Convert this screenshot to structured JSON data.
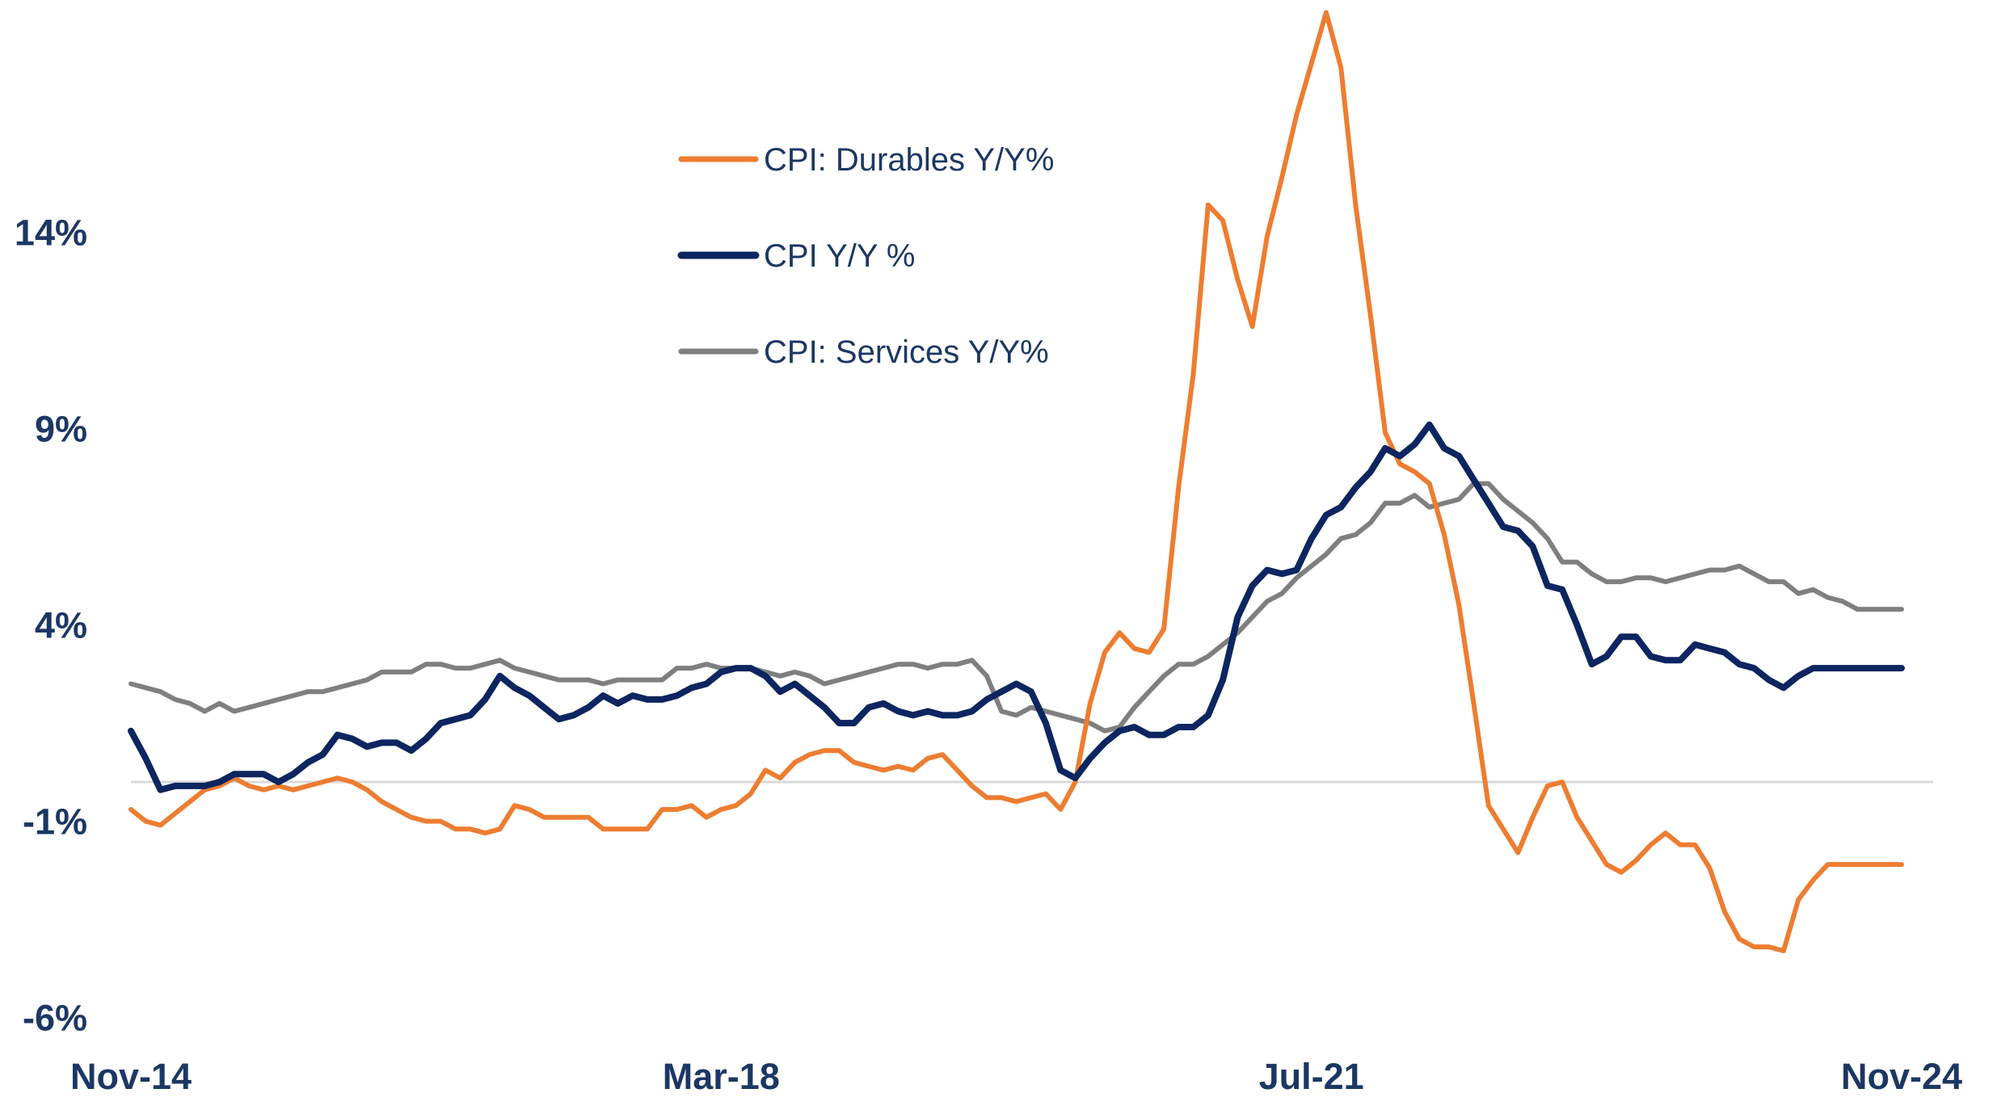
{
  "chart_data": {
    "type": "line",
    "title": "",
    "xlabel": "",
    "ylabel": "",
    "x_tick_labels": [
      "Nov-14",
      "Mar-18",
      "Jul-21",
      "Nov-24"
    ],
    "y_tick_labels": [
      "14%",
      "9%",
      "4%",
      "-1%",
      "-6%"
    ],
    "y_ticks": [
      14,
      9,
      4,
      -1,
      -6
    ],
    "ylim": [
      -6.5,
      19
    ],
    "x_range": [
      "Nov-14",
      "Nov-24"
    ],
    "months": 121,
    "zero_line": true,
    "grid": false,
    "legend_position": "top-center",
    "series": [
      {
        "name": "CPI: Durables Y/Y%",
        "color": "#ed7d31",
        "values": [
          -0.7,
          -1.0,
          -1.1,
          -0.8,
          -0.5,
          -0.2,
          -0.1,
          0.1,
          -0.1,
          -0.2,
          -0.1,
          -0.2,
          -0.1,
          0.0,
          0.1,
          0.0,
          -0.2,
          -0.5,
          -0.7,
          -0.9,
          -1.0,
          -1.0,
          -1.2,
          -1.2,
          -1.3,
          -1.2,
          -0.6,
          -0.7,
          -0.9,
          -0.9,
          -0.9,
          -0.9,
          -1.2,
          -1.2,
          -1.2,
          -1.2,
          -0.7,
          -0.7,
          -0.6,
          -0.9,
          -0.7,
          -0.6,
          -0.3,
          0.3,
          0.1,
          0.5,
          0.7,
          0.8,
          0.8,
          0.5,
          0.4,
          0.3,
          0.4,
          0.3,
          0.6,
          0.7,
          0.3,
          -0.1,
          -0.4,
          -0.4,
          -0.5,
          -0.4,
          -0.3,
          -0.7,
          0.0,
          2.0,
          3.3,
          3.8,
          3.4,
          3.3,
          3.9,
          7.5,
          10.4,
          14.7,
          14.3,
          12.8,
          11.6,
          13.9,
          15.4,
          17.0,
          18.3,
          19.6,
          18.2,
          14.7,
          11.9,
          8.9,
          8.1,
          7.9,
          7.6,
          6.3,
          4.5,
          2.0,
          -0.6,
          -1.2,
          -1.8,
          -0.9,
          -0.1,
          0.0,
          -0.9,
          -1.5,
          -2.1,
          -2.3,
          -2.0,
          -1.6,
          -1.3,
          -1.6,
          -1.6,
          -2.2,
          -3.3,
          -4.0,
          -4.2,
          -4.2,
          -4.3,
          -3.0,
          -2.5,
          -2.1,
          -2.1,
          -2.1,
          -2.1,
          -2.1,
          -2.1
        ]
      },
      {
        "name": "CPI Y/Y %",
        "color": "#0d2560",
        "values": [
          1.3,
          0.6,
          -0.2,
          -0.1,
          -0.1,
          -0.1,
          0.0,
          0.2,
          0.2,
          0.2,
          0.0,
          0.2,
          0.5,
          0.7,
          1.2,
          1.1,
          0.9,
          1.0,
          1.0,
          0.8,
          1.1,
          1.5,
          1.6,
          1.7,
          2.1,
          2.7,
          2.4,
          2.2,
          1.9,
          1.6,
          1.7,
          1.9,
          2.2,
          2.0,
          2.2,
          2.1,
          2.1,
          2.2,
          2.4,
          2.5,
          2.8,
          2.9,
          2.9,
          2.7,
          2.3,
          2.5,
          2.2,
          1.9,
          1.5,
          1.5,
          1.9,
          2.0,
          1.8,
          1.7,
          1.8,
          1.7,
          1.7,
          1.8,
          2.1,
          2.3,
          2.5,
          2.3,
          1.5,
          0.3,
          0.1,
          0.6,
          1.0,
          1.3,
          1.4,
          1.2,
          1.2,
          1.4,
          1.4,
          1.7,
          2.6,
          4.2,
          5.0,
          5.4,
          5.3,
          5.4,
          6.2,
          6.8,
          7.0,
          7.5,
          7.9,
          8.5,
          8.3,
          8.6,
          9.1,
          8.5,
          8.3,
          7.7,
          7.1,
          6.5,
          6.4,
          6.0,
          5.0,
          4.9,
          4.0,
          3.0,
          3.2,
          3.7,
          3.7,
          3.2,
          3.1,
          3.1,
          3.5,
          3.4,
          3.3,
          3.0,
          2.9,
          2.6,
          2.4,
          2.7,
          2.9,
          2.9,
          2.9,
          2.9,
          2.9,
          2.9,
          2.9
        ]
      },
      {
        "name": "CPI: Services Y/Y%",
        "color": "#7f7f7f",
        "values": [
          2.5,
          2.4,
          2.3,
          2.1,
          2.0,
          1.8,
          2.0,
          1.8,
          1.9,
          2.0,
          2.1,
          2.2,
          2.3,
          2.3,
          2.4,
          2.5,
          2.6,
          2.8,
          2.8,
          2.8,
          3.0,
          3.0,
          2.9,
          2.9,
          3.0,
          3.1,
          2.9,
          2.8,
          2.7,
          2.6,
          2.6,
          2.6,
          2.5,
          2.6,
          2.6,
          2.6,
          2.6,
          2.9,
          2.9,
          3.0,
          2.9,
          2.9,
          2.9,
          2.8,
          2.7,
          2.8,
          2.7,
          2.5,
          2.6,
          2.7,
          2.8,
          2.9,
          3.0,
          3.0,
          2.9,
          3.0,
          3.0,
          3.1,
          2.7,
          1.8,
          1.7,
          1.9,
          1.8,
          1.7,
          1.6,
          1.5,
          1.3,
          1.4,
          1.9,
          2.3,
          2.7,
          3.0,
          3.0,
          3.2,
          3.5,
          3.8,
          4.2,
          4.6,
          4.8,
          5.2,
          5.5,
          5.8,
          6.2,
          6.3,
          6.6,
          7.1,
          7.1,
          7.3,
          7.0,
          7.1,
          7.2,
          7.6,
          7.6,
          7.2,
          6.9,
          6.6,
          6.2,
          5.6,
          5.6,
          5.3,
          5.1,
          5.1,
          5.2,
          5.2,
          5.1,
          5.2,
          5.3,
          5.4,
          5.4,
          5.5,
          5.3,
          5.1,
          5.1,
          4.8,
          4.9,
          4.7,
          4.6,
          4.4,
          4.4,
          4.4,
          4.4
        ]
      }
    ]
  }
}
